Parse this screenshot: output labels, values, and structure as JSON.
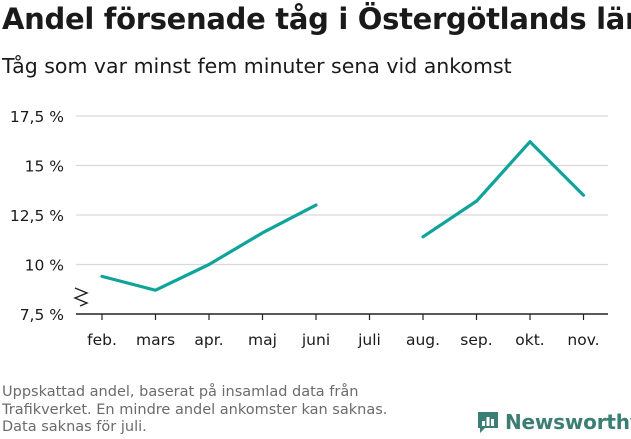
{
  "title": "Andel försenade tåg i Östergötlands län",
  "subtitle": "Tåg som var minst fem minuter sena vid ankomst",
  "footnote": [
    "Uppskattad andel, baserat på insamlad data från",
    "Trafikverket. En mindre andel ankomster kan saknas.",
    "Data saknas för juli."
  ],
  "logo": {
    "text": "Newsworthy",
    "icon": "bar-chart-speech-bubble-icon",
    "color": "#3b7e73"
  },
  "colors": {
    "line": "#0fa39a",
    "grid": "#d9d9d9",
    "axis": "#222222"
  },
  "chart_data": {
    "type": "line",
    "title": "Andel försenade tåg i Östergötlands län",
    "subtitle": "Tåg som var minst fem minuter sena vid ankomst",
    "xlabel": "",
    "ylabel": "",
    "categories": [
      "feb.",
      "mars",
      "apr.",
      "maj",
      "juni",
      "juli",
      "aug.",
      "sep.",
      "okt.",
      "nov."
    ],
    "series": [
      {
        "values": [
          9.4,
          8.7,
          10.0,
          11.6,
          13.0,
          null,
          11.4,
          13.2,
          16.2,
          13.5
        ]
      }
    ],
    "yticks": [
      7.5,
      10,
      12.5,
      15,
      17.5
    ],
    "ytick_labels": [
      "7,5 %",
      "10 %",
      "12,5 %",
      "15 %",
      "17,5 %"
    ],
    "ylim": [
      7.5,
      17.5
    ],
    "axis_break": true,
    "grid": true
  }
}
